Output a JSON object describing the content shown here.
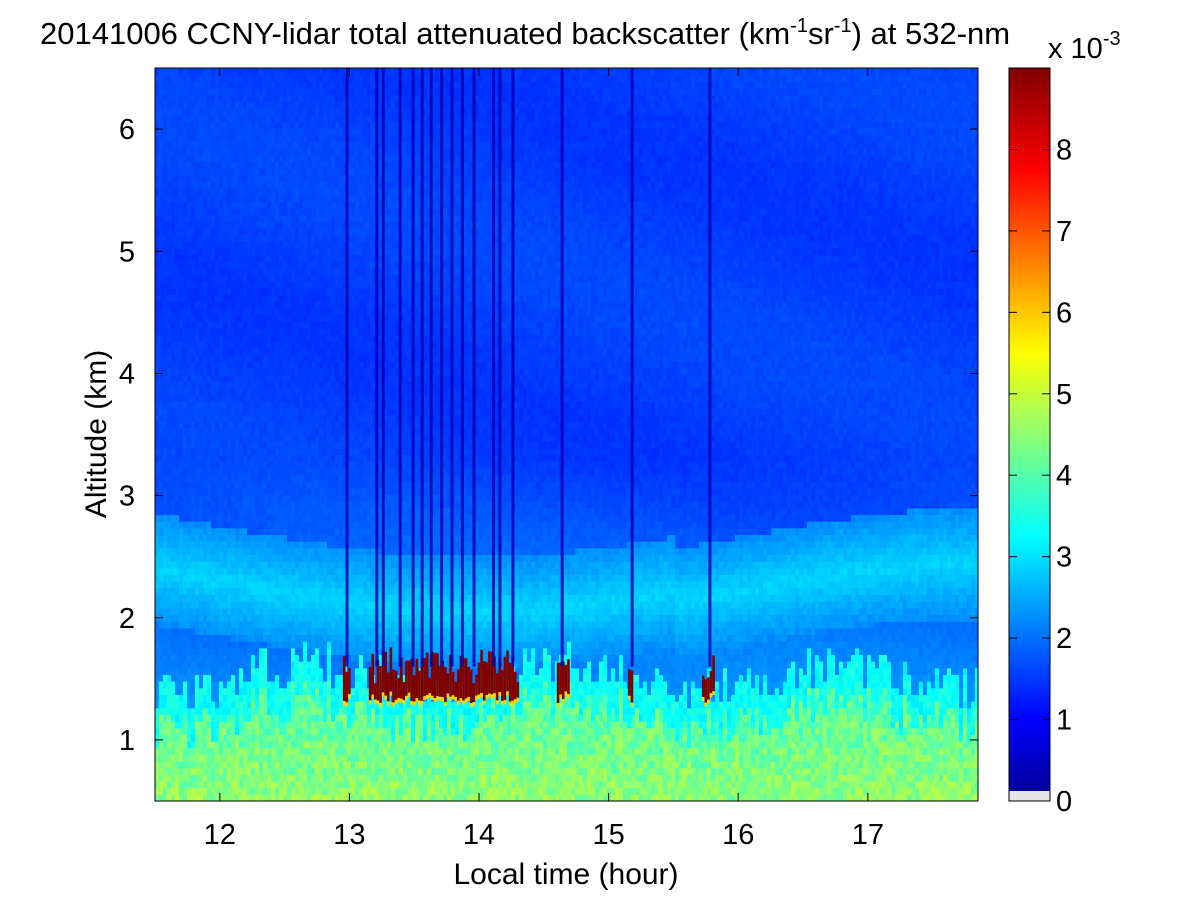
{
  "chart_data": {
    "type": "heatmap",
    "title": {
      "prefix": "20141006 CCNY-lidar total attenuated backscatter (km",
      "sup1": "-1",
      "mid": "sr",
      "sup2": "-1",
      "suffix": ") at 532-nm"
    },
    "xlabel": "Local time (hour)",
    "ylabel": "Altitude (km)",
    "xlim": [
      11.5,
      17.85
    ],
    "ylim": [
      0.5,
      6.5
    ],
    "xticks": [
      12,
      13,
      14,
      15,
      16,
      17
    ],
    "yticks": [
      1,
      2,
      3,
      4,
      5,
      6
    ],
    "colorbar": {
      "colormap": "jet",
      "range": [
        0,
        9
      ],
      "ticks": [
        0,
        1,
        2,
        3,
        4,
        5,
        6,
        7,
        8
      ],
      "multiplier_base": "x 10",
      "multiplier_exp": "-3",
      "nodata_color": "#e6e6e6"
    },
    "description_layers": {
      "upper_background": 1.6,
      "aerosol_layer_center_km": 2.3,
      "aerosol_layer_value": 2.9,
      "boundary_layer_value": 4.2,
      "cloud_base_km": [
        1.3,
        1.65
      ],
      "cloud_value": 9.0,
      "cloud_time_ranges": [
        [
          12.95,
          13.0
        ],
        [
          13.15,
          14.3
        ],
        [
          14.6,
          14.68
        ],
        [
          15.15,
          15.18
        ],
        [
          15.72,
          15.8
        ]
      ],
      "dropout_times": [
        12.97,
        13.2,
        13.25,
        13.38,
        13.48,
        13.55,
        13.62,
        13.7,
        13.78,
        13.86,
        13.95,
        14.1,
        14.15,
        14.25,
        14.63,
        15.17,
        15.77
      ]
    }
  }
}
